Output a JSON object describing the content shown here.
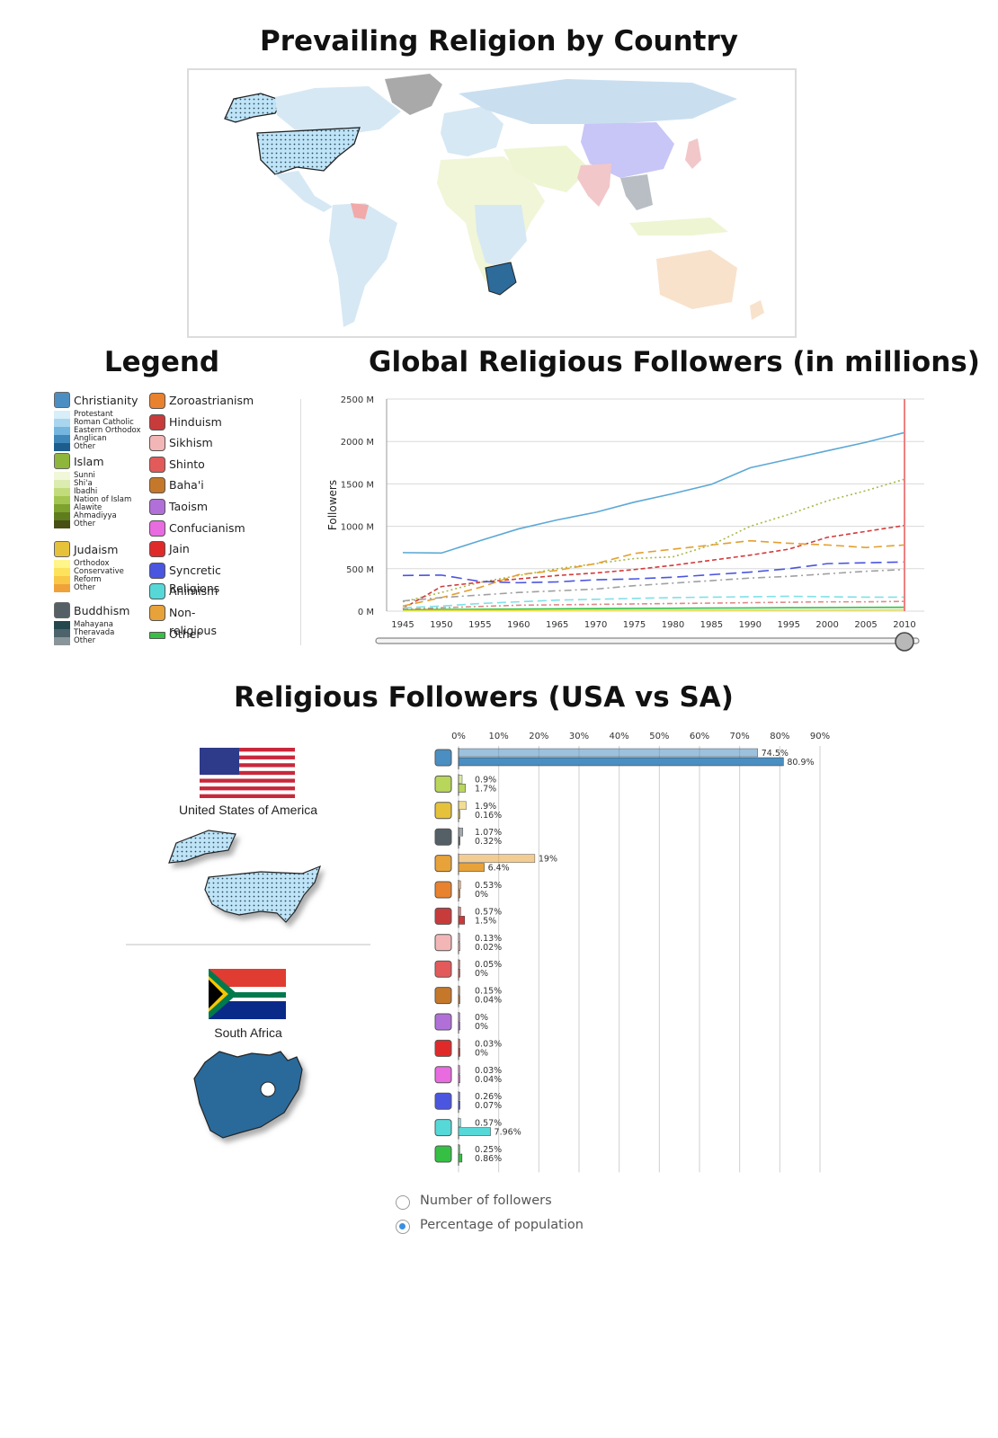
{
  "map": {
    "title": "Prevailing Religion by Country"
  },
  "legend": {
    "title": "Legend",
    "groups": [
      {
        "name": "Christianity",
        "icon": "cross-icon",
        "color": "#4b8ec2",
        "subs": [
          "Protestant",
          "Roman Catholic",
          "Eastern Orthodox",
          "Anglican",
          "Other"
        ],
        "sub_colors": [
          "#d8eef9",
          "#a9d6ef",
          "#74b6de",
          "#3f86b9",
          "#1c5d8e"
        ]
      },
      {
        "name": "Islam",
        "icon": "crescent-icon",
        "color": "#8db63a",
        "subs": [
          "Sunni",
          "Shi'a",
          "Ibadhi",
          "Nation of Islam",
          "Alawite",
          "Ahmadiyya",
          "Other"
        ],
        "sub_colors": [
          "#f1f7d9",
          "#dcebb0",
          "#c2dc7c",
          "#a3c651",
          "#7ea22e",
          "#5f7c1e",
          "#474f14"
        ]
      },
      {
        "name": "Judaism",
        "icon": "star-of-david-icon",
        "color": "#e6c23a",
        "subs": [
          "Orthodox",
          "Conservative",
          "Reform",
          "Other"
        ],
        "sub_colors": [
          "#fff58a",
          "#fde35c",
          "#f8c846",
          "#f0a23a"
        ]
      },
      {
        "name": "Buddhism",
        "icon": "dharma-wheel-icon",
        "color": "#555f66",
        "subs": [
          "Mahayana",
          "Theravada",
          "Other"
        ],
        "sub_colors": [
          "#25484f",
          "#4c636b",
          "#8a959a"
        ]
      }
    ],
    "religions": [
      {
        "name": "Zoroastrianism",
        "icon": "faravahar-icon",
        "color": "#e8822e"
      },
      {
        "name": "Hinduism",
        "icon": "om-icon",
        "color": "#c83b3b"
      },
      {
        "name": "Sikhism",
        "icon": "khanda-icon",
        "color": "#f3b6b6"
      },
      {
        "name": "Shinto",
        "icon": "torii-icon",
        "color": "#e35a5a"
      },
      {
        "name": "Baha'i",
        "icon": "nine-star-icon",
        "color": "#c6782a"
      },
      {
        "name": "Taoism",
        "icon": "yin-yang-icon",
        "color": "#b070d8"
      },
      {
        "name": "Confucianism",
        "icon": "confucius-icon",
        "color": "#e86be0"
      },
      {
        "name": "Jain",
        "icon": "jain-hand-icon",
        "color": "#e02a2a"
      },
      {
        "name": "Syncretic Religions",
        "icon": "syncretic-icon",
        "color": "#4a55e0"
      },
      {
        "name": "Animism",
        "icon": "eye-icon",
        "color": "#56d8d8"
      },
      {
        "name": "Non-religious",
        "icon": "question-icon",
        "color": "#e8a23a"
      },
      {
        "name": "Other",
        "icon": "dots-icon",
        "color": "#35c043"
      }
    ]
  },
  "line_chart": {
    "title": "Global Religious Followers (in millions)",
    "ylabel": "Followers"
  },
  "comparison": {
    "title": "Religious Followers (USA vs SA)",
    "usa_label": "United States of America",
    "sa_label": "South Africa"
  },
  "display_mode": {
    "options": [
      "Number of followers",
      "Percentage of population"
    ],
    "selected": "Percentage of population"
  },
  "chart_data": [
    {
      "type": "line",
      "ylabel": "Followers",
      "x": [
        1945,
        1950,
        1955,
        1960,
        1965,
        1970,
        1975,
        1980,
        1985,
        1990,
        1995,
        2000,
        2005,
        2010
      ],
      "ylim": [
        0,
        2500
      ],
      "yticks": [
        "0 M",
        "500 M",
        "1000 M",
        "1500 M",
        "2000 M",
        "2500 M"
      ],
      "grid": true,
      "selected_year": 2010,
      "series": [
        {
          "color": "#5ca8d6",
          "dash": "",
          "values": [
            690,
            685,
            830,
            970,
            1075,
            1165,
            1285,
            1385,
            1495,
            1690,
            1790,
            1890,
            1990,
            2105
          ]
        },
        {
          "color": "#a8b84a",
          "dash": "2,3",
          "values": [
            110,
            220,
            340,
            420,
            500,
            560,
            620,
            640,
            780,
            1000,
            1140,
            1300,
            1420,
            1555
          ]
        },
        {
          "color": "#d23c3c",
          "dash": "5,3",
          "values": [
            30,
            290,
            340,
            380,
            420,
            450,
            490,
            540,
            600,
            660,
            730,
            870,
            940,
            1010
          ]
        },
        {
          "color": "#e2a030",
          "dash": "9,5",
          "values": [
            60,
            160,
            280,
            430,
            480,
            560,
            680,
            730,
            780,
            830,
            800,
            780,
            750,
            780
          ]
        },
        {
          "color": "#4a55e0",
          "dash": "12,6",
          "values": [
            420,
            425,
            350,
            335,
            345,
            370,
            380,
            400,
            430,
            460,
            500,
            560,
            570,
            580
          ]
        },
        {
          "color": "#a0a0a0",
          "dash": "8,4,2,4",
          "values": [
            120,
            160,
            190,
            220,
            240,
            260,
            300,
            330,
            360,
            390,
            410,
            440,
            470,
            490
          ]
        },
        {
          "color": "#7fe0e8",
          "dash": "10,5",
          "values": [
            40,
            60,
            90,
            110,
            130,
            140,
            150,
            160,
            165,
            170,
            175,
            170,
            165,
            165
          ]
        },
        {
          "color": "#e08888",
          "dash": "6,3,2,3",
          "values": [
            20,
            40,
            55,
            70,
            75,
            80,
            85,
            90,
            95,
            100,
            105,
            110,
            110,
            115
          ]
        },
        {
          "color": "#35c043",
          "dash": "",
          "values": [
            15,
            20,
            22,
            25,
            27,
            30,
            32,
            34,
            36,
            38,
            40,
            42,
            44,
            46
          ]
        },
        {
          "color": "#f0e040",
          "dash": "",
          "values": [
            5,
            6,
            8,
            9,
            10,
            11,
            12,
            12,
            13,
            13,
            14,
            14,
            14,
            15
          ]
        }
      ]
    },
    {
      "type": "bar",
      "orientation": "horizontal",
      "xticks": [
        "0%",
        "10%",
        "20%",
        "30%",
        "40%",
        "50%",
        "60%",
        "70%",
        "80%",
        "90%"
      ],
      "xlim": [
        0,
        90
      ],
      "categories": [
        "Christianity",
        "Islam",
        "Judaism",
        "Buddhism",
        "Non-religious",
        "Zoroastrianism",
        "Hinduism",
        "Sikhism",
        "Shinto",
        "Baha'i",
        "Taoism",
        "Jain",
        "Confucianism",
        "Syncretic Religions",
        "Animism",
        "Other"
      ],
      "category_icons": [
        "cross-icon",
        "crescent-icon",
        "star-of-david-icon",
        "dharma-wheel-icon",
        "question-icon",
        "faravahar-icon",
        "om-icon",
        "khanda-icon",
        "torii-icon",
        "nine-star-icon",
        "yin-yang-icon",
        "jain-hand-icon",
        "confucius-icon",
        "syncretic-icon",
        "eye-icon",
        "dots-icon"
      ],
      "category_colors": [
        "#4b8ec2",
        "#b8d65a",
        "#e6c23a",
        "#555f66",
        "#e8a23a",
        "#e8822e",
        "#c83b3b",
        "#f3b6b6",
        "#e35a5a",
        "#c6782a",
        "#b070d8",
        "#e02a2a",
        "#e86be0",
        "#4a55e0",
        "#56d8d8",
        "#35c043"
      ],
      "series": [
        {
          "values": [
            74.5,
            0.9,
            1.9,
            1.07,
            19,
            0.53,
            0.57,
            0.13,
            0.05,
            0.15,
            0,
            0.03,
            0.03,
            0.26,
            0.57,
            0.25
          ],
          "labels": [
            "74.5%",
            "0.9%",
            "1.9%",
            "1.07%",
            "19%",
            "0.53%",
            "0.57%",
            "0.13%",
            "0.05%",
            "0.15%",
            "0%",
            "0.03%",
            "0.03%",
            "0.26%",
            "0.57%",
            "0.25%"
          ]
        },
        {
          "values": [
            80.9,
            1.7,
            0.16,
            0.32,
            6.4,
            0,
            1.5,
            0.02,
            0,
            0.04,
            0,
            0,
            0.04,
            0.07,
            7.96,
            0.86
          ],
          "labels": [
            "80.9%",
            "1.7%",
            "0.16%",
            "0.32%",
            "6.4%",
            "0%",
            "1.5%",
            "0.02%",
            "0%",
            "0.04%",
            "0%",
            "0%",
            "0.04%",
            "0.07%",
            "7.96%",
            "0.86%"
          ]
        }
      ]
    }
  ]
}
